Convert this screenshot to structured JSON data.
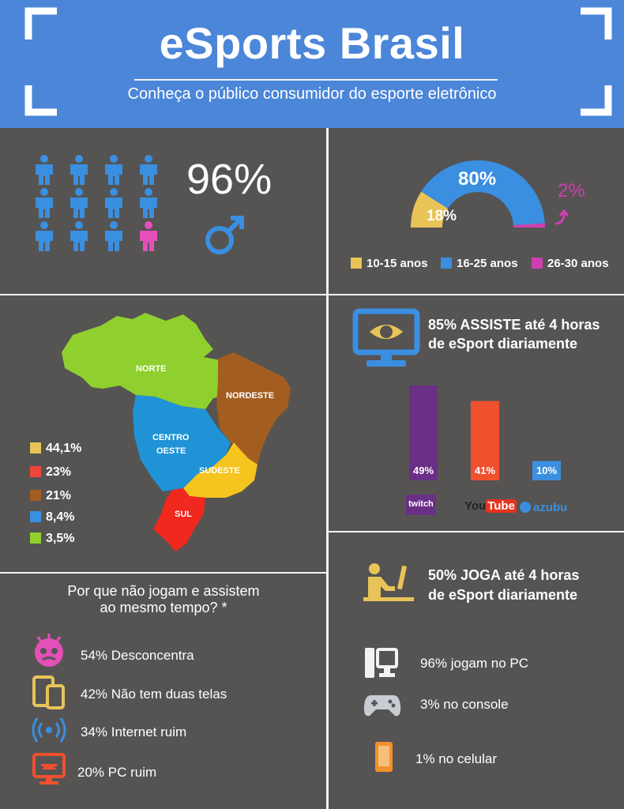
{
  "header": {
    "title": "eSports Brasil",
    "subtitle": "Conheça o público consumidor do esporte eletrônico"
  },
  "gender": {
    "percent": "96%",
    "symbol": "♂",
    "male_icons": 11,
    "female_icons": 1
  },
  "age": {
    "labels": [
      "18%",
      "80%",
      "2%"
    ],
    "legend": [
      "10-15 anos",
      "16-25 anos",
      "26-30 anos"
    ],
    "colors": [
      "#e8c458",
      "#3a8fe0",
      "#cf3fb0"
    ]
  },
  "region": {
    "names": [
      "NORTE",
      "NORDESTE",
      "CENTRO",
      "OESTE",
      "SUDESTE",
      "SUL"
    ],
    "legend": [
      {
        "value": "44,1%",
        "color": "#e8c458"
      },
      {
        "value": "23%",
        "color": "#f0463a"
      },
      {
        "value": "21%",
        "color": "#a35d20"
      },
      {
        "value": "8,4%",
        "color": "#3a8fe0"
      },
      {
        "value": "3,5%",
        "color": "#8fd02e"
      }
    ]
  },
  "watch": {
    "text_line1": "85% ASSISTE até 4 horas",
    "text_line2": "de eSport diariamente"
  },
  "platforms": {
    "logos": [
      "twitch",
      "You",
      "Tube",
      "azubu"
    ]
  },
  "reasons": {
    "title_line1": "Por que não jogam e assistem",
    "title_line2": "ao mesmo tempo? *",
    "items": [
      "54% Desconcentra",
      "42% Não tem duas telas",
      "34% Internet ruim",
      "20% PC ruim"
    ]
  },
  "play": {
    "text_line1": "50% JOGA até 4 horas",
    "text_line2": "de eSport diariamente",
    "items": [
      "96% jogam no PC",
      "3% no console",
      "1% no celular"
    ]
  },
  "chart_data": [
    {
      "type": "pie",
      "categories": [
        "10-15 anos",
        "16-25 anos",
        "26-30 anos"
      ],
      "values": [
        18,
        80,
        2
      ],
      "colors": [
        "#e8c458",
        "#3a8fe0",
        "#cf3fb0"
      ]
    },
    {
      "type": "bar",
      "categories": [
        "Twitch",
        "YouTube",
        "Azubu"
      ],
      "values": [
        49,
        41,
        10
      ],
      "labels": [
        "49%",
        "41%",
        "10%"
      ],
      "colors": [
        "#6a2f86",
        "#f0502e",
        "#3a8fe0"
      ],
      "ylim": [
        0,
        49
      ]
    },
    {
      "type": "bar",
      "categories": [
        "Sudeste",
        "Sul",
        "Nordeste",
        "Centro-Oeste",
        "Norte"
      ],
      "values": [
        44.1,
        23,
        21,
        8.4,
        3.5
      ],
      "labels": [
        "44,1%",
        "23%",
        "21%",
        "8,4%",
        "3,5%"
      ],
      "colors": [
        "#e8c458",
        "#f0463a",
        "#a35d20",
        "#3a8fe0",
        "#8fd02e"
      ]
    }
  ]
}
